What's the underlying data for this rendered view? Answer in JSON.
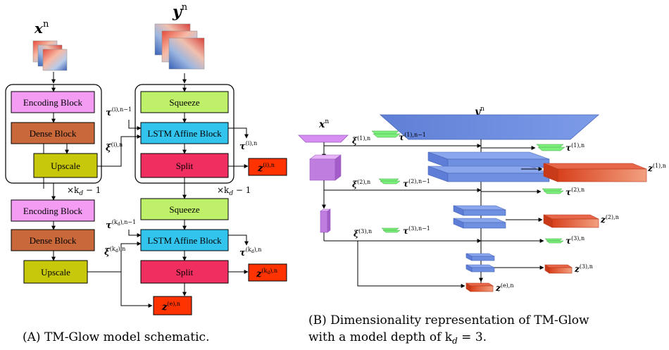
{
  "panel_a": {
    "input_label": "x",
    "input_sup": "n",
    "output_label": "y",
    "output_sup": "n",
    "repeat_label": "×k",
    "repeat_sub": "d",
    "repeat_tail": " − 1",
    "blocks": {
      "encoding": "Encoding Block",
      "dense": "Dense Block",
      "upscale": "Upscale",
      "squeeze": "Squeeze",
      "lstm": "LSTM Affine Block",
      "split": "Split"
    },
    "tau_label": "τ",
    "xi_label": "ξ",
    "z_label": "z",
    "sup_i_n1": "(i),n−1",
    "sup_i_n": "(i),n",
    "sup_kd_n1": "(k",
    "sup_kd_n1_tail": "),n−1",
    "sup_kd_n": "(k",
    "sup_kd_n_tail": "),n",
    "sup_e_n": "(e),n",
    "caption": "(A) TM-Glow model schematic."
  },
  "panel_b": {
    "y_label": "y",
    "y_sup": "n",
    "x_label": "x",
    "x_sup": "n",
    "xi_sups": [
      "(1),n",
      "(2),n",
      "(3),n"
    ],
    "tau_prev_sups": [
      "(1),n−1",
      "(2),n−1",
      "(3),n−1"
    ],
    "tau_sups": [
      "(1),n",
      "(2),n",
      "(3),n"
    ],
    "z_sups": [
      "(1),n",
      "(2),n",
      "(3),n"
    ],
    "ze_sup": "(e),n",
    "caption_line1": "(B) Dimensionality representation of TM-Glow",
    "caption_line2": "with a model depth of k",
    "caption_sub": "d",
    "caption_tail": " = 3."
  },
  "colors": {
    "encoding": "#f49cf4",
    "dense": "#c9683a",
    "upscale": "#c8c80a",
    "squeeze": "#bff06a",
    "lstm": "#33c4ee",
    "split": "#f02e60",
    "z": "#ff3300",
    "cube_blue": "#6f8fe0",
    "tau_green": "#7cf07c",
    "cube_purple": "#c07de0",
    "cube_orange": "#e0502a"
  }
}
